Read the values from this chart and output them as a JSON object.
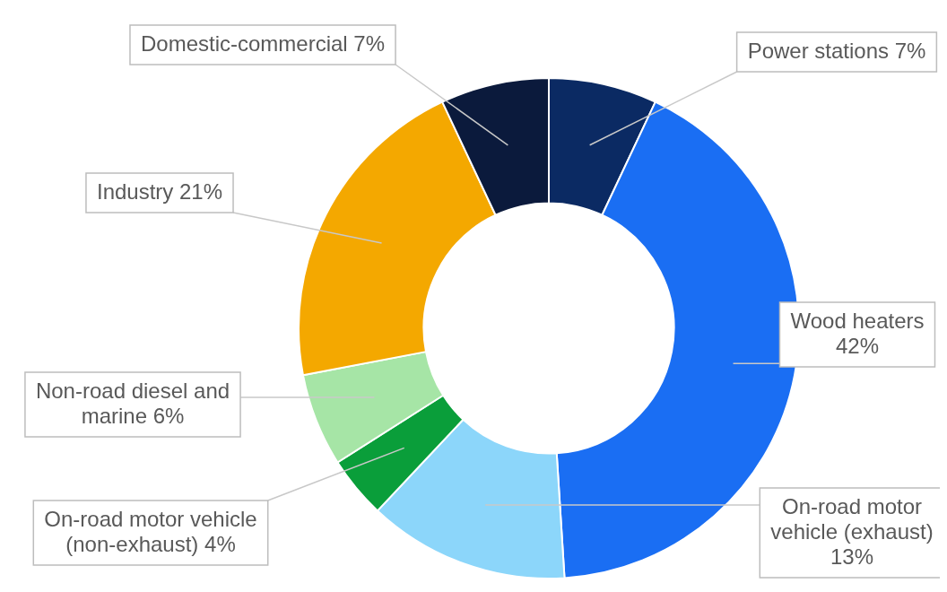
{
  "chart_data": {
    "type": "donut",
    "categories": [
      "Power stations",
      "Wood heaters",
      "On-road motor vehicle (exhaust)",
      "On-road motor vehicle (non-exhaust)",
      "Non-road diesel and marine",
      "Industry",
      "Domestic-commercial"
    ],
    "values": [
      7,
      42,
      13,
      4,
      6,
      21,
      7
    ],
    "value_labels": [
      "7%",
      "42%",
      "13%",
      "4%",
      "6%",
      "21%",
      "7%"
    ],
    "colors": [
      "#0b2a63",
      "#1a6ef3",
      "#8cd6fa",
      "#0a9e3a",
      "#a6e5a6",
      "#f4a800",
      "#0b1a3c"
    ],
    "legend": false
  }
}
